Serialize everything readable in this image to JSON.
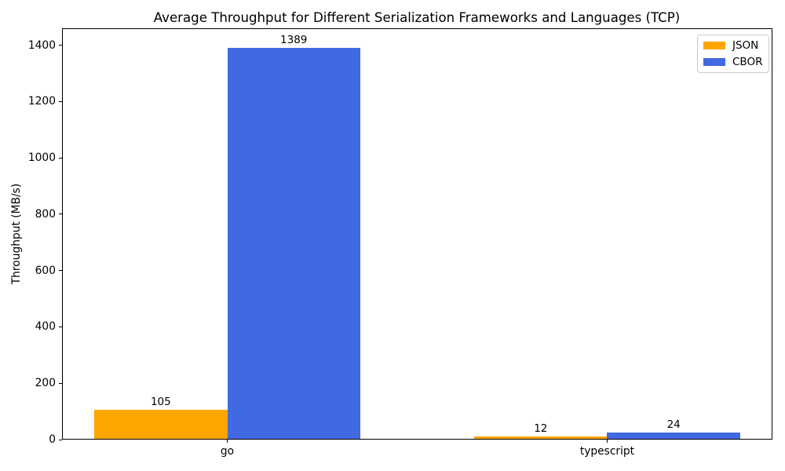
{
  "chart_data": {
    "type": "bar",
    "title": "Average Throughput for Different Serialization Frameworks and Languages (TCP)",
    "xlabel": "",
    "ylabel": "Throughput (MB/s)",
    "categories": [
      "go",
      "typescript"
    ],
    "series": [
      {
        "name": "JSON",
        "color": "#FFA500",
        "values": [
          105,
          12
        ]
      },
      {
        "name": "CBOR",
        "color": "#4169E1",
        "values": [
          1389,
          24
        ]
      }
    ],
    "value_labels": [
      [
        "105",
        "12"
      ],
      [
        "1389",
        "24"
      ]
    ],
    "yticks": [
      "0",
      "200",
      "400",
      "600",
      "800",
      "1000",
      "1200",
      "1400"
    ],
    "ylim": [
      0,
      1460
    ],
    "bar_width_ratio": 0.35,
    "grid": false,
    "legend_position": "upper right"
  }
}
